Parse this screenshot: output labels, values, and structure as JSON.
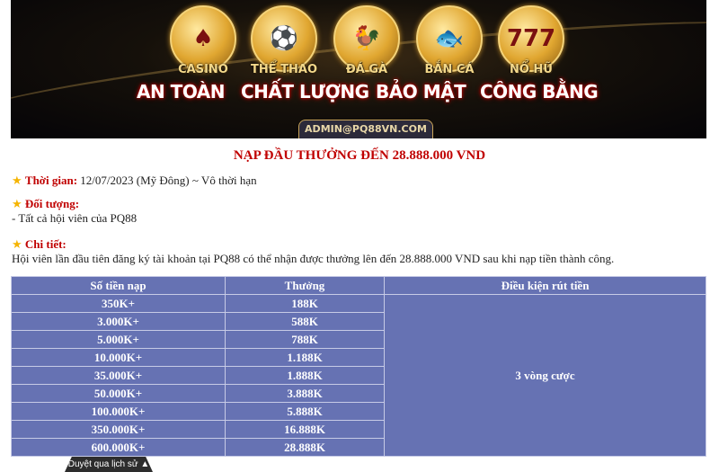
{
  "banner": {
    "categories": [
      {
        "label": "CASINO",
        "icon": "dealer-icon",
        "glyph": "♠"
      },
      {
        "label": "THỂ THAO",
        "icon": "football-player-icon",
        "glyph": "⚽"
      },
      {
        "label": "ĐÁ GÀ",
        "icon": "rooster-icon",
        "glyph": "🐓"
      },
      {
        "label": "BẮN CÁ",
        "icon": "fish-icon",
        "glyph": "🐟"
      },
      {
        "label": "NỔ HŨ",
        "icon": "slot-777-icon",
        "glyph": "777"
      }
    ],
    "slogans": [
      "AN TOÀN",
      "CHẤT LƯỢNG",
      "BẢO MẬT",
      "CÔNG BẰNG"
    ],
    "email": "ADMIN@PQ88VN.COM"
  },
  "title": "NẠP ĐẦU THƯỞNG ĐẾN 28.888.000 VND",
  "time": {
    "label": "Thời gian:",
    "value": "12/07/2023 (Mỹ Đông) ~ Vô thời hạn"
  },
  "target": {
    "label": "Đối tượng:",
    "value": "- Tất cả hội viên của PQ88"
  },
  "detail": {
    "label": "Chi tiết:",
    "value": "Hội viên lần đầu tiên đăng ký tài khoản tại PQ88 có thể nhận được thưởng lên đến 28.888.000 VND sau khi nạp tiền thành công."
  },
  "table": {
    "headers": [
      "Số tiền nạp",
      "Thưởng",
      "Điều kiện rút tiền"
    ],
    "rows": [
      [
        "350K+",
        "188K"
      ],
      [
        "3.000K+",
        "588K"
      ],
      [
        "5.000K+",
        "788K"
      ],
      [
        "10.000K+",
        "1.188K"
      ],
      [
        "35.000K+",
        "1.888K"
      ],
      [
        "50.000K+",
        "3.888K"
      ],
      [
        "100.000K+",
        "5.888K"
      ],
      [
        "350.000K+",
        "16.888K"
      ],
      [
        "600.000K+",
        "28.888K"
      ]
    ],
    "condition": "3 vòng cược"
  },
  "history_tab": "Duyệt qua lịch sử ▲",
  "colors": {
    "title": "#c00000",
    "table_bg": "#6672b3",
    "star": "#f5b400"
  }
}
